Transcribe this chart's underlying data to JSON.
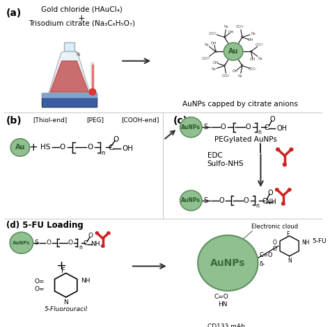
{
  "bg_color": "#ffffff",
  "label_a": "(a)",
  "label_b": "(b)",
  "label_c": "(c)",
  "label_d": "(d) 5-FU Loading",
  "text_gold_chloride": "Gold chloride (HAuCl₄)",
  "text_plus": "+",
  "text_trisodium": "Trisodium citrate (Na₃C₆H₅O₇)",
  "text_aunps_capped": "AuNPs capped by citrate anions",
  "text_thiol": "[Thiol-end]",
  "text_peg": "[PEG]",
  "text_cooh": "[COOH-end]",
  "text_pegylated": "PEGylated AuNPs",
  "text_edc": "EDC",
  "text_sulfonhs": "Sulfo-NHS",
  "text_5fu": "5-Fluorouracil",
  "text_electronic": "Electronic cloud",
  "text_aunps_center": "AuNPs",
  "text_5fu_label": "5-FU",
  "text_cd133": "CD133 mAb",
  "au_color": "#90c090",
  "au_border": "#609060",
  "red_color": "#cc2222",
  "arrow_color": "#333333"
}
